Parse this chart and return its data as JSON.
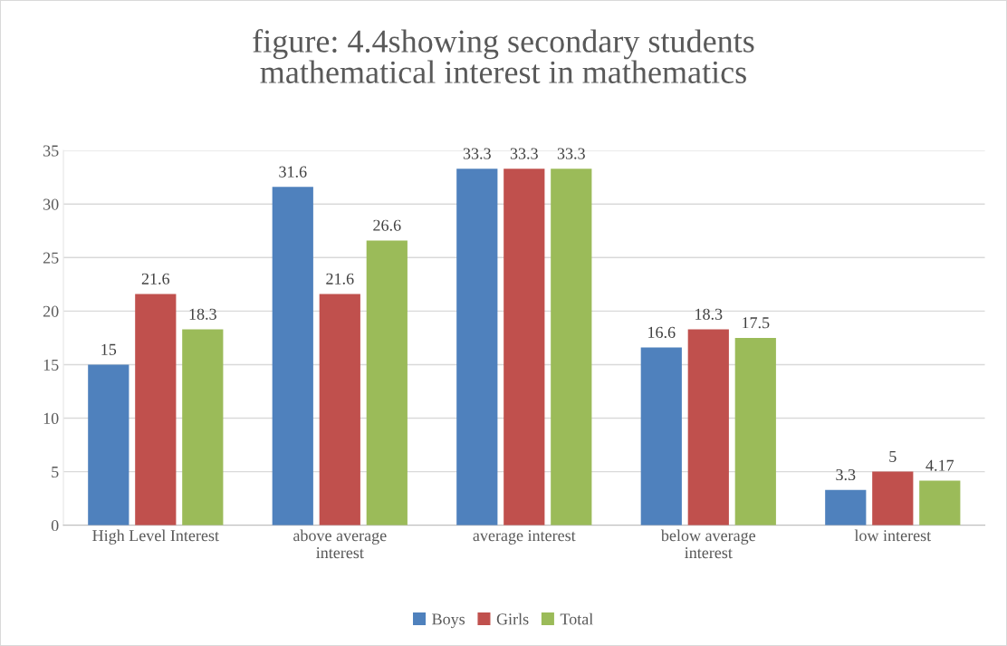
{
  "chart_data": {
    "type": "bar",
    "title": "figure: 4.4showing secondary students\nmathematical interest in mathematics",
    "categories": [
      "High Level Interest",
      "above average\ninterest",
      "average interest",
      "below average\ninterest",
      "low interest"
    ],
    "series": [
      {
        "name": "Boys",
        "color": "#4f81bd",
        "values": [
          15,
          31.6,
          33.3,
          16.6,
          3.3
        ]
      },
      {
        "name": "Girls",
        "color": "#c0504d",
        "values": [
          21.6,
          21.6,
          33.3,
          18.3,
          5
        ]
      },
      {
        "name": "Total",
        "color": "#9bbb59",
        "values": [
          18.3,
          26.6,
          33.3,
          17.5,
          4.17
        ]
      }
    ],
    "ylim": [
      0,
      35
    ],
    "yticks": [
      0,
      5,
      10,
      15,
      20,
      25,
      30,
      35
    ],
    "grid": "y",
    "legend": "bottom",
    "data_labels": true
  }
}
